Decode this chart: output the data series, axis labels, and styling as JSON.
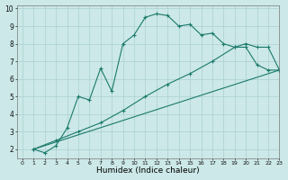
{
  "xlabel": "Humidex (Indice chaleur)",
  "bg_color": "#cce8e8",
  "grid_color": "#aad0d0",
  "line_color": "#1a7a6a",
  "xlim": [
    -0.5,
    23
  ],
  "ylim": [
    1.5,
    10.2
  ],
  "line1_x": [
    1,
    2,
    3,
    4,
    5,
    6,
    7,
    8,
    9,
    10,
    11,
    12,
    13,
    14,
    15,
    16,
    17,
    18,
    19,
    20,
    21,
    22,
    23
  ],
  "line1_y": [
    2.0,
    1.8,
    2.2,
    3.2,
    5.0,
    4.8,
    6.6,
    5.3,
    8.0,
    8.5,
    9.5,
    9.7,
    9.6,
    9.0,
    9.1,
    8.5,
    8.6,
    8.0,
    7.8,
    7.8,
    6.8,
    6.5,
    6.5
  ],
  "line2_x": [
    1,
    3,
    5,
    7,
    9,
    11,
    13,
    15,
    17,
    19,
    20,
    21,
    22,
    23
  ],
  "line2_y": [
    2.0,
    2.5,
    3.0,
    3.5,
    4.2,
    5.0,
    5.7,
    6.3,
    7.0,
    7.8,
    8.0,
    7.8,
    7.8,
    6.5
  ],
  "line3_x": [
    1,
    23
  ],
  "line3_y": [
    2.0,
    6.5
  ],
  "xticks": [
    0,
    1,
    2,
    3,
    4,
    5,
    6,
    7,
    8,
    9,
    10,
    11,
    12,
    13,
    14,
    15,
    16,
    17,
    18,
    19,
    20,
    21,
    22,
    23
  ],
  "yticks": [
    2,
    3,
    4,
    5,
    6,
    7,
    8,
    9,
    10
  ]
}
